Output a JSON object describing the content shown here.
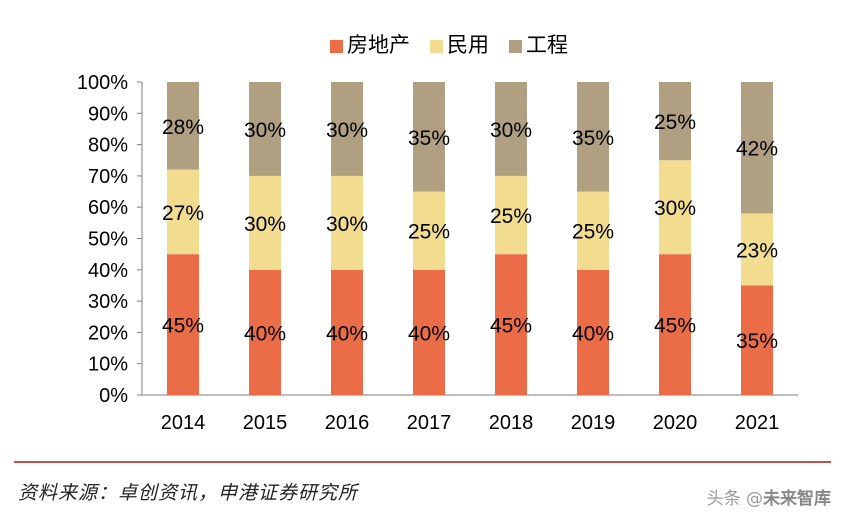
{
  "chart_data": {
    "type": "bar",
    "stacked": true,
    "percent": true,
    "categories": [
      "2014",
      "2015",
      "2016",
      "2017",
      "2018",
      "2019",
      "2020",
      "2021"
    ],
    "series": [
      {
        "name": "房地产",
        "color": "#ea6d47",
        "values": [
          45,
          40,
          40,
          40,
          45,
          40,
          45,
          35
        ],
        "labels": [
          "45%",
          "40%",
          "40%",
          "40%",
          "45%",
          "40%",
          "45%",
          "35%"
        ]
      },
      {
        "name": "民用",
        "color": "#f2dc8f",
        "values": [
          27,
          30,
          30,
          25,
          25,
          25,
          30,
          23
        ],
        "labels": [
          "27%",
          "30%",
          "30%",
          "25%",
          "25%",
          "25%",
          "30%",
          "23%"
        ]
      },
      {
        "name": "工程",
        "color": "#b09f80",
        "values": [
          28,
          30,
          30,
          35,
          30,
          35,
          25,
          42
        ],
        "labels": [
          "28%",
          "30%",
          "30%",
          "35%",
          "30%",
          "35%",
          "25%",
          "42%"
        ]
      }
    ],
    "ylim": [
      0,
      100
    ],
    "yticks": [
      "0%",
      "10%",
      "20%",
      "30%",
      "40%",
      "50%",
      "60%",
      "70%",
      "80%",
      "90%",
      "100%"
    ],
    "legend_position": "top",
    "grid": false
  },
  "footer": {
    "source": "资料来源：卓创资讯，申港证券研究所",
    "rule_color": "#c0504d",
    "watermark_prefix": "头条 @",
    "watermark_name": "未来智库"
  }
}
